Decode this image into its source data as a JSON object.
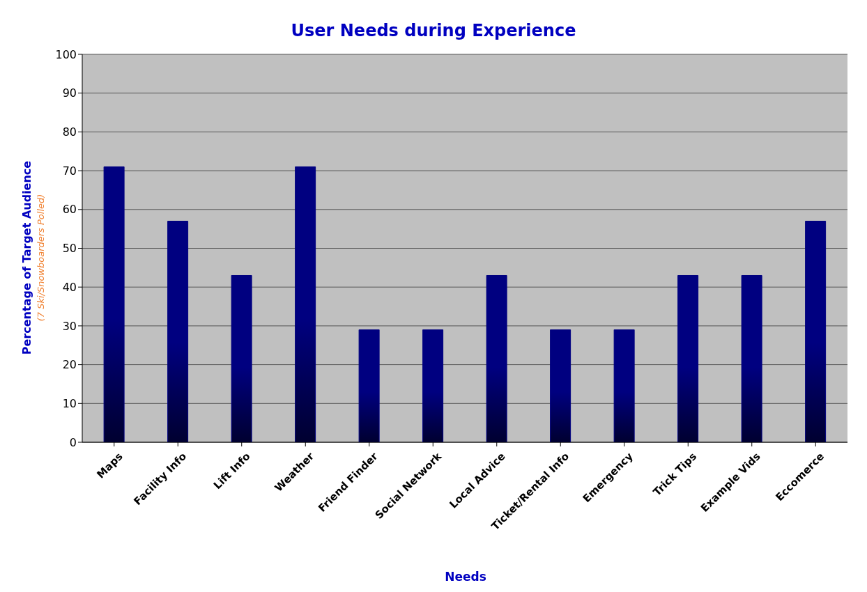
{
  "chart_data": {
    "type": "bar",
    "title": "User Needs during Experience",
    "xlabel": "Needs",
    "ylabel": "Percentage of Target Audience",
    "annotations": [
      "(7 Ski/Snowboarders Polled)"
    ],
    "categories": [
      "Maps",
      "Facility Info",
      "Lift Info",
      "Weather",
      "Friend Finder",
      "Social Network",
      "Local Advice",
      "Ticket/Rental Info",
      "Emergency",
      "Trick Tips",
      "Example Vids",
      "Eccomerce"
    ],
    "values": [
      71,
      57,
      43,
      71,
      29,
      29,
      43,
      29,
      29,
      43,
      43,
      57
    ],
    "color": "#000080",
    "ylim": [
      0,
      100
    ],
    "yticks": [
      0,
      10,
      20,
      30,
      40,
      50,
      60,
      70,
      80,
      90,
      100
    ],
    "grid": "y"
  }
}
